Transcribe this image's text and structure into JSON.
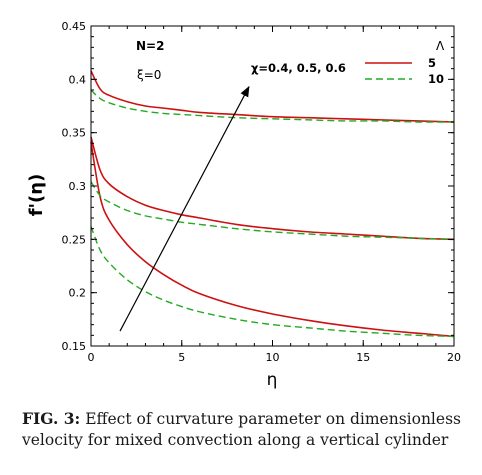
{
  "chart_data": {
    "type": "line",
    "xlabel": "η",
    "ylabel": "f'(η)",
    "xlim": [
      0,
      20
    ],
    "ylim": [
      0.15,
      0.45
    ],
    "xticks": [
      0,
      5,
      10,
      15,
      20
    ],
    "yticks": [
      0.15,
      0.2,
      0.25,
      0.3,
      0.35,
      0.4,
      0.45
    ],
    "grid": false,
    "annotations": {
      "params_n": "N=2",
      "params_xi": "ξ=0",
      "chi_label": "χ=0.4, 0.5, 0.6"
    },
    "legend": {
      "title": "Λ",
      "position": "top-right",
      "entries": [
        {
          "label": "5",
          "color": "#cc1111",
          "style": "solid"
        },
        {
          "label": "10",
          "color": "#22aa22",
          "style": "dashed"
        }
      ]
    },
    "series": [
      {
        "group": "0.4",
        "legend": "5",
        "color": "#cc1111",
        "style": "solid",
        "x": [
          0,
          0.5,
          1,
          2,
          3,
          4,
          5,
          6,
          8,
          10,
          12,
          14,
          16,
          18,
          20
        ],
        "y": [
          0.341,
          0.29,
          0.268,
          0.245,
          0.229,
          0.217,
          0.207,
          0.199,
          0.188,
          0.18,
          0.174,
          0.169,
          0.165,
          0.162,
          0.159
        ]
      },
      {
        "group": "0.4",
        "legend": "10",
        "color": "#22aa22",
        "style": "dashed",
        "x": [
          0,
          0.5,
          1,
          2,
          3,
          4,
          5,
          6,
          8,
          10,
          12,
          14,
          16,
          18,
          20
        ],
        "y": [
          0.262,
          0.24,
          0.228,
          0.212,
          0.201,
          0.193,
          0.187,
          0.182,
          0.175,
          0.17,
          0.167,
          0.164,
          0.162,
          0.16,
          0.159
        ]
      },
      {
        "group": "0.5",
        "legend": "5",
        "color": "#cc1111",
        "style": "solid",
        "x": [
          0,
          0.5,
          1,
          2,
          3,
          4,
          5,
          6,
          8,
          10,
          12,
          14,
          16,
          18,
          20
        ],
        "y": [
          0.346,
          0.315,
          0.302,
          0.29,
          0.282,
          0.277,
          0.273,
          0.27,
          0.264,
          0.26,
          0.257,
          0.255,
          0.253,
          0.251,
          0.25
        ]
      },
      {
        "group": "0.5",
        "legend": "10",
        "color": "#22aa22",
        "style": "dashed",
        "x": [
          0,
          0.5,
          1,
          2,
          3,
          4,
          5,
          6,
          8,
          10,
          12,
          14,
          16,
          18,
          20
        ],
        "y": [
          0.304,
          0.291,
          0.285,
          0.277,
          0.272,
          0.269,
          0.266,
          0.264,
          0.26,
          0.257,
          0.255,
          0.253,
          0.252,
          0.251,
          0.25
        ]
      },
      {
        "group": "0.6",
        "legend": "5",
        "color": "#cc1111",
        "style": "solid",
        "x": [
          0,
          0.5,
          1,
          2,
          3,
          4,
          5,
          6,
          8,
          10,
          12,
          14,
          16,
          18,
          20
        ],
        "y": [
          0.408,
          0.391,
          0.385,
          0.379,
          0.375,
          0.373,
          0.371,
          0.369,
          0.367,
          0.365,
          0.364,
          0.363,
          0.362,
          0.361,
          0.36
        ]
      },
      {
        "group": "0.6",
        "legend": "10",
        "color": "#22aa22",
        "style": "dashed",
        "x": [
          0,
          0.5,
          1,
          2,
          3,
          4,
          5,
          6,
          8,
          10,
          12,
          14,
          16,
          18,
          20
        ],
        "y": [
          0.39,
          0.382,
          0.378,
          0.373,
          0.37,
          0.368,
          0.367,
          0.366,
          0.364,
          0.363,
          0.362,
          0.361,
          0.361,
          0.36,
          0.36
        ]
      }
    ],
    "arrow": {
      "from": [
        1.6,
        0.164
      ],
      "to": [
        8.7,
        0.393
      ]
    }
  },
  "caption": {
    "label": "FIG. 3:",
    "text": "Effect of curvature parameter on dimensionless velocity for mixed convection along a vertical cylinder"
  }
}
